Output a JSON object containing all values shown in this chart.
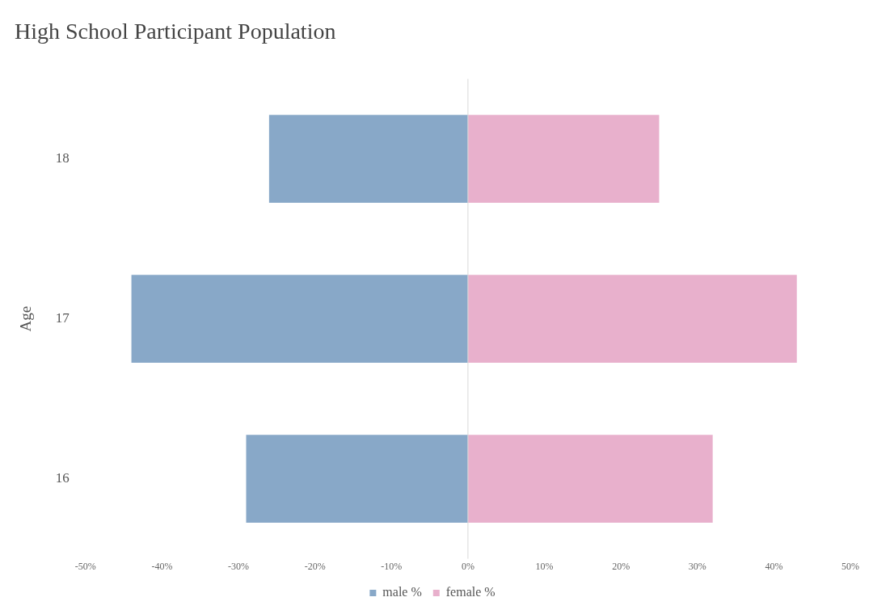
{
  "chart_data": {
    "type": "bar",
    "orientation": "horizontal",
    "stacked": true,
    "title": "High School Participant Population",
    "ylabel": "Age",
    "categories": [
      "18",
      "17",
      "16"
    ],
    "series": [
      {
        "name": "male %",
        "color": "#88a8c8",
        "values": [
          -26,
          -44,
          -29
        ]
      },
      {
        "name": "female %",
        "color": "#e8b0cc",
        "values": [
          25,
          43,
          32
        ]
      }
    ],
    "xlim": [
      -50,
      50
    ],
    "xticks": [
      {
        "value": -50,
        "label": "-50%"
      },
      {
        "value": -40,
        "label": "-40%"
      },
      {
        "value": -30,
        "label": "-30%"
      },
      {
        "value": -20,
        "label": "-20%"
      },
      {
        "value": -10,
        "label": "-10%"
      },
      {
        "value": 0,
        "label": "0%"
      },
      {
        "value": 10,
        "label": "10%"
      },
      {
        "value": 20,
        "label": "20%"
      },
      {
        "value": 30,
        "label": "30%"
      },
      {
        "value": 40,
        "label": "40%"
      },
      {
        "value": 50,
        "label": "50%"
      }
    ],
    "ref_lines": [
      {
        "axis": "x",
        "value": 0,
        "color": "#d9d9d9"
      }
    ],
    "legend": "bottom"
  }
}
